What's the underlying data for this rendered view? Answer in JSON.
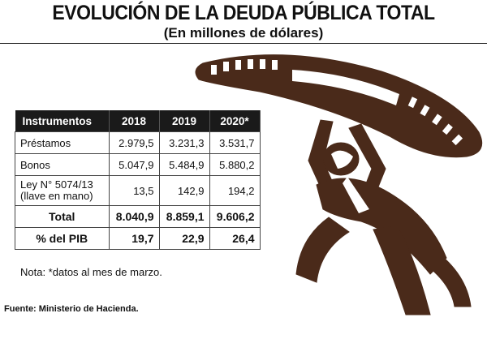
{
  "header": {
    "title": "EVOLUCIÓN DE LA DEUDA PÚBLICA TOTAL",
    "subtitle": "(En millones de dólares)"
  },
  "table": {
    "columns": [
      "Instrumentos",
      "2018",
      "2019",
      "2020*"
    ],
    "rows": [
      {
        "label": "Préstamos",
        "values": [
          "2.979,5",
          "3.231,3",
          "3.531,7"
        ]
      },
      {
        "label": "Bonos",
        "values": [
          "5.047,9",
          "5.484,9",
          "5.880,2"
        ]
      },
      {
        "label_line1": "Ley N° 5074/13",
        "label_line2": "(llave en mano)",
        "values": [
          "13,5",
          "142,9",
          "194,2"
        ]
      },
      {
        "label": "Total",
        "values": [
          "8.040,9",
          "8.859,1",
          "9.606,2"
        ]
      },
      {
        "label": "% del PIB",
        "values": [
          "19,7",
          "22,9",
          "26,4"
        ]
      }
    ]
  },
  "note": "Nota: *datos al mes de marzo.",
  "source": "Fuente: Ministerio de Hacienda.",
  "colors": {
    "illustration_brown": "#4a2a1a",
    "header_black": "#1a1a1a"
  }
}
